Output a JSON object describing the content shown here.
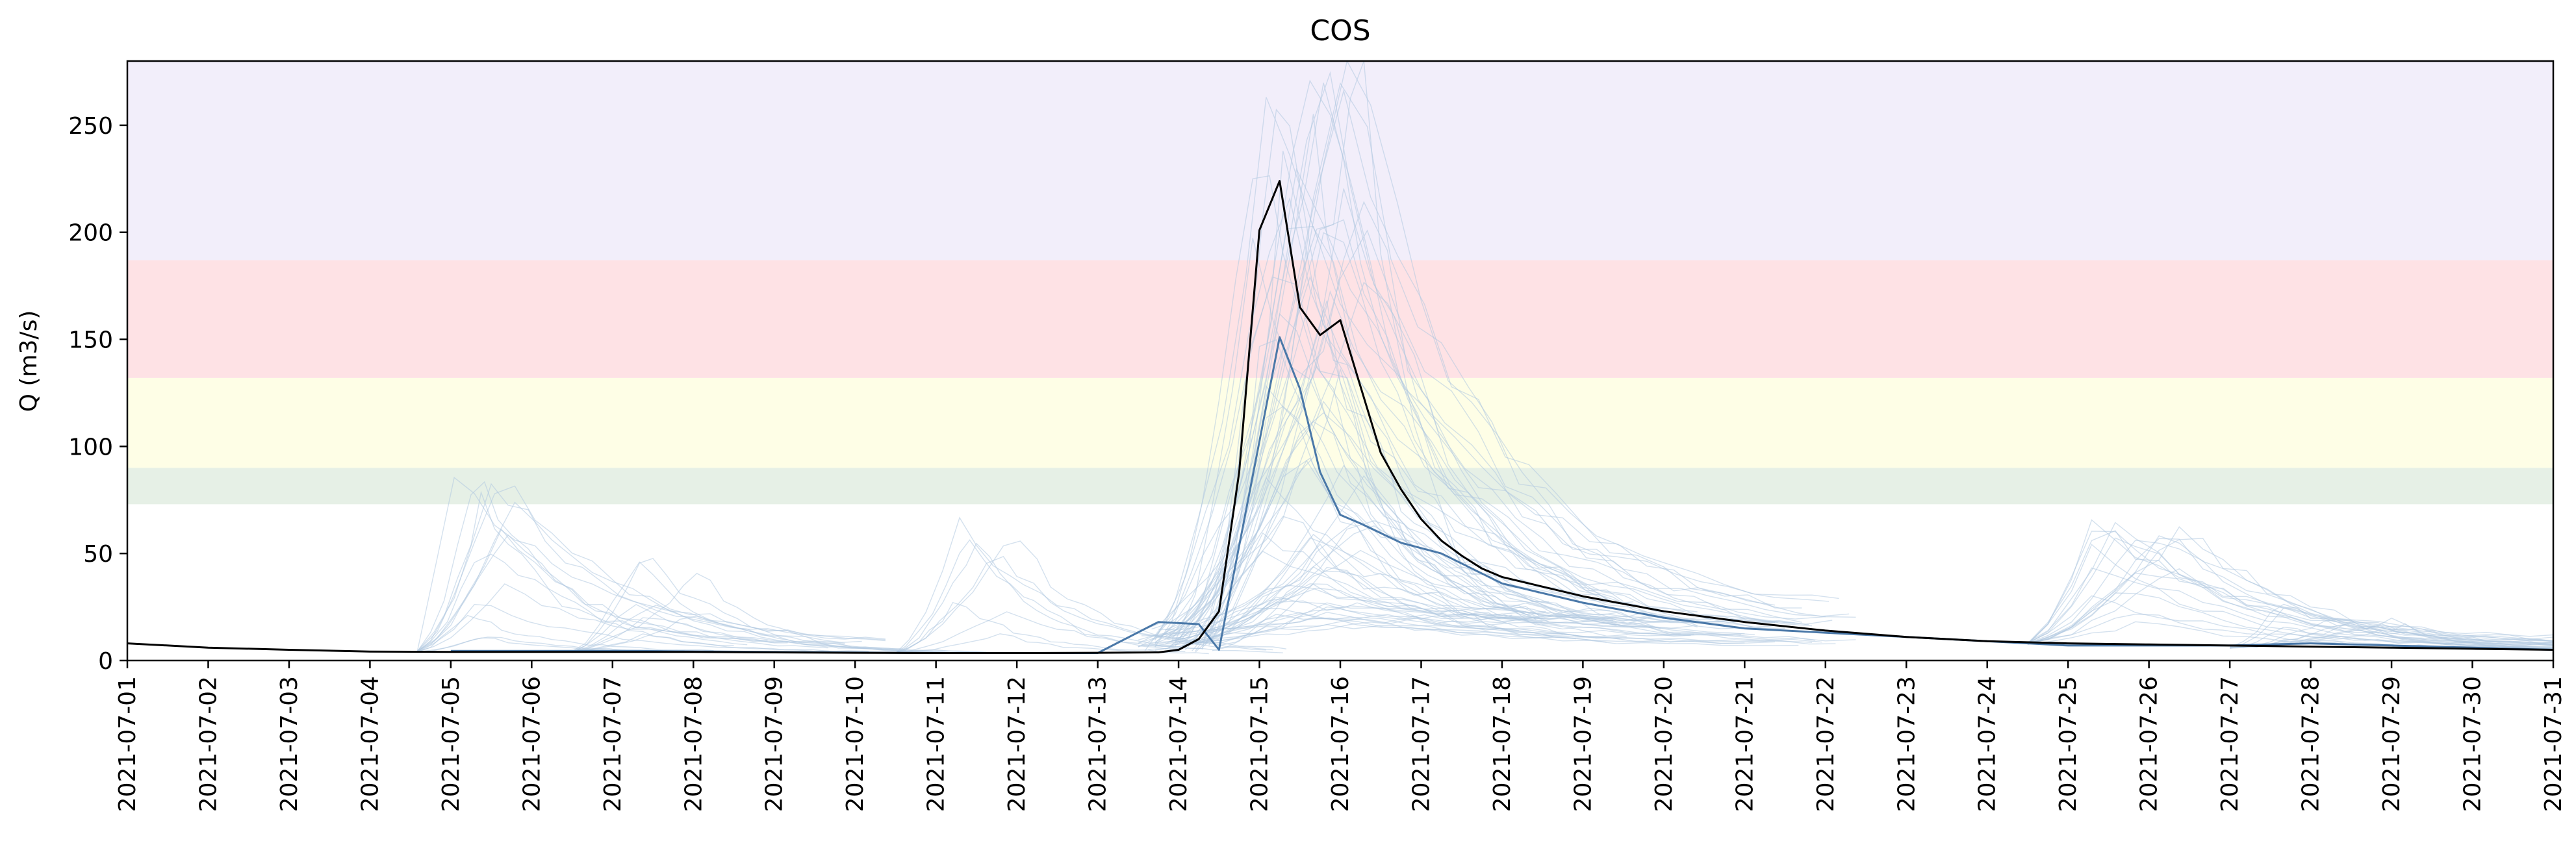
{
  "chart_data": {
    "type": "line",
    "title": "COS",
    "xlabel": "",
    "ylabel": "Q (m3/s)",
    "x_ticks": [
      "2021-07-01",
      "2021-07-02",
      "2021-07-03",
      "2021-07-04",
      "2021-07-05",
      "2021-07-06",
      "2021-07-07",
      "2021-07-08",
      "2021-07-09",
      "2021-07-10",
      "2021-07-11",
      "2021-07-12",
      "2021-07-13",
      "2021-07-14",
      "2021-07-15",
      "2021-07-16",
      "2021-07-17",
      "2021-07-18",
      "2021-07-19",
      "2021-07-20",
      "2021-07-21",
      "2021-07-22",
      "2021-07-23",
      "2021-07-24",
      "2021-07-25",
      "2021-07-26",
      "2021-07-27",
      "2021-07-28",
      "2021-07-29",
      "2021-07-30",
      "2021-07-31"
    ],
    "xlim": [
      "2021-07-01",
      "2021-07-31"
    ],
    "y_ticks": [
      0,
      50,
      100,
      150,
      200,
      250
    ],
    "ylim": [
      0,
      280
    ],
    "grid": false,
    "threshold_bands": [
      {
        "from": 73,
        "to": 90,
        "color": "#e6f0e6"
      },
      {
        "from": 90,
        "to": 132,
        "color": "#fefee6"
      },
      {
        "from": 132,
        "to": 187,
        "color": "#fee2e5"
      },
      {
        "from": 187,
        "to": 280,
        "color": "#f2eefa"
      }
    ],
    "observed": {
      "color": "#000000",
      "points": [
        [
          "2021-07-01T00",
          8
        ],
        [
          "2021-07-02T00",
          6
        ],
        [
          "2021-07-03T00",
          5
        ],
        [
          "2021-07-04T00",
          4.2
        ],
        [
          "2021-07-05T00",
          4
        ],
        [
          "2021-07-06T00",
          4
        ],
        [
          "2021-07-07T00",
          4
        ],
        [
          "2021-07-08T00",
          4
        ],
        [
          "2021-07-09T00",
          3.8
        ],
        [
          "2021-07-10T00",
          3.6
        ],
        [
          "2021-07-11T00",
          3.5
        ],
        [
          "2021-07-12T00",
          3.5
        ],
        [
          "2021-07-13T00",
          3.6
        ],
        [
          "2021-07-13T18",
          3.8
        ],
        [
          "2021-07-14T00",
          5
        ],
        [
          "2021-07-14T06",
          10
        ],
        [
          "2021-07-14T12",
          23
        ],
        [
          "2021-07-14T18",
          88
        ],
        [
          "2021-07-15T00",
          201
        ],
        [
          "2021-07-15T06",
          224
        ],
        [
          "2021-07-15T12",
          165
        ],
        [
          "2021-07-15T18",
          152
        ],
        [
          "2021-07-16T00",
          159
        ],
        [
          "2021-07-16T06",
          128
        ],
        [
          "2021-07-16T12",
          97
        ],
        [
          "2021-07-16T18",
          80
        ],
        [
          "2021-07-17T00",
          66
        ],
        [
          "2021-07-17T06",
          56
        ],
        [
          "2021-07-17T12",
          49
        ],
        [
          "2021-07-17T18",
          43
        ],
        [
          "2021-07-18T00",
          39
        ],
        [
          "2021-07-19T00",
          30
        ],
        [
          "2021-07-20T00",
          23
        ],
        [
          "2021-07-21T00",
          18
        ],
        [
          "2021-07-22T00",
          14
        ],
        [
          "2021-07-23T00",
          11
        ],
        [
          "2021-07-24T00",
          9
        ],
        [
          "2021-07-25T00",
          8
        ],
        [
          "2021-07-26T00",
          7.5
        ],
        [
          "2021-07-27T00",
          7
        ],
        [
          "2021-07-28T00",
          6.5
        ],
        [
          "2021-07-29T00",
          6
        ],
        [
          "2021-07-30T00",
          5.5
        ],
        [
          "2021-07-31T00",
          5
        ]
      ]
    },
    "forecast_median": {
      "color": "#4a78a8",
      "points": [
        [
          "2021-07-05T00",
          4.5
        ],
        [
          "2021-07-07T00",
          4.5
        ],
        [
          "2021-07-09T00",
          4
        ],
        [
          "2021-07-11T00",
          3.5
        ],
        [
          "2021-07-13T00",
          3.5
        ],
        [
          "2021-07-13T18",
          18
        ],
        [
          "2021-07-14T06",
          17
        ],
        [
          "2021-07-14T12",
          5
        ],
        [
          "2021-07-15T06",
          151
        ],
        [
          "2021-07-15T12",
          127
        ],
        [
          "2021-07-15T18",
          88
        ],
        [
          "2021-07-16T00",
          68
        ],
        [
          "2021-07-16T06",
          64
        ],
        [
          "2021-07-16T18",
          55
        ],
        [
          "2021-07-17T06",
          50
        ],
        [
          "2021-07-18T00",
          36
        ],
        [
          "2021-07-19T00",
          27
        ],
        [
          "2021-07-20T00",
          20
        ],
        [
          "2021-07-21T00",
          15
        ],
        [
          "2021-07-25T00",
          7
        ],
        [
          "2021-07-27T00",
          7
        ],
        [
          "2021-07-28T00",
          8
        ],
        [
          "2021-07-29T00",
          7
        ],
        [
          "2021-07-30T00",
          6
        ],
        [
          "2021-07-31T00",
          5
        ]
      ]
    },
    "ensemble_color": "#b0c8e0"
  }
}
